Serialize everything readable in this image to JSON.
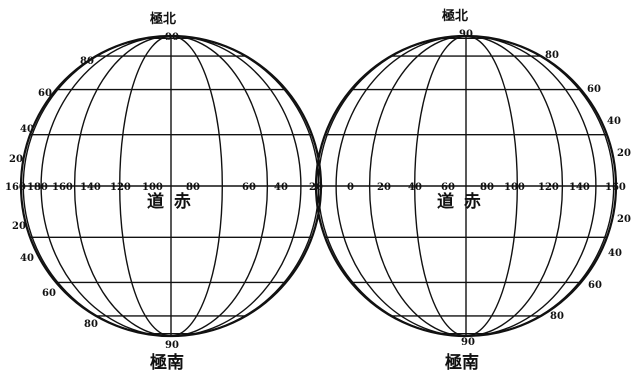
{
  "left_hemisphere": {
    "north_pole_label": "極北",
    "south_pole_label": "極南",
    "north_degree": "90",
    "south_degree": "90",
    "equator_label": "道 赤",
    "equator_longitudes": [
      "160",
      "180",
      "160",
      "140",
      "120",
      "100",
      "80",
      "60",
      "40",
      "20"
    ],
    "latitude_labels_north": [
      "80",
      "60",
      "40",
      "20"
    ],
    "latitude_labels_south": [
      "20",
      "40",
      "60",
      "80"
    ]
  },
  "right_hemisphere": {
    "north_pole_label": "極北",
    "south_pole_label": "極南",
    "north_degree": "90",
    "south_degree": "90",
    "equator_label": "道 赤",
    "equator_longitudes": [
      "0",
      "20",
      "40",
      "60",
      "80",
      "100",
      "120",
      "140",
      "160"
    ],
    "latitude_labels_north": [
      "80",
      "60",
      "40",
      "20"
    ],
    "latitude_labels_south": [
      "20",
      "40",
      "60",
      "80"
    ]
  }
}
